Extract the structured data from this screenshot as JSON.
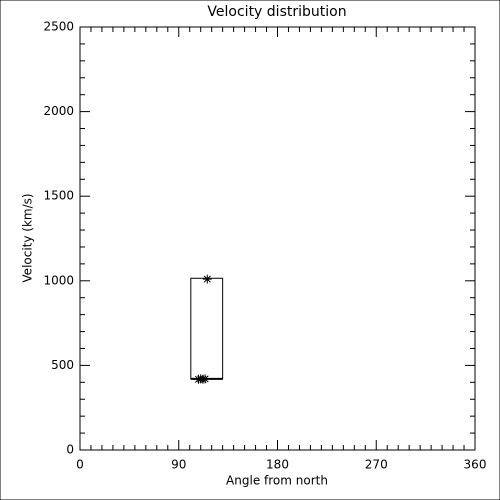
{
  "chart_data": {
    "type": "scatter",
    "title": "Velocity distribution",
    "x_label": "Angle from north",
    "y_label": "Velocity (km/s)",
    "series": [
      {
        "x": [
          116,
          108,
          110,
          112,
          114
        ],
        "values": [
          1010,
          418,
          420,
          418,
          420
        ],
        "color": "#000000"
      }
    ],
    "box": {
      "x": [
        101,
        130
      ],
      "y": [
        420,
        1015
      ]
    },
    "xlim": [
      0,
      360
    ],
    "xticks": [
      0,
      90,
      180,
      270,
      360
    ],
    "ylim": [
      0,
      2500
    ],
    "yticks": [
      0,
      500,
      1000,
      1500,
      2000,
      2500
    ]
  }
}
